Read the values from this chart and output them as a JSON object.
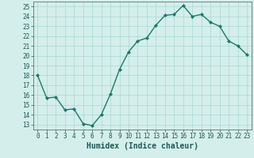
{
  "x": [
    0,
    1,
    2,
    3,
    4,
    5,
    6,
    7,
    8,
    9,
    10,
    11,
    12,
    13,
    14,
    15,
    16,
    17,
    18,
    19,
    20,
    21,
    22,
    23
  ],
  "y": [
    18,
    15.7,
    15.8,
    14.5,
    14.6,
    13.1,
    12.9,
    14.0,
    16.1,
    18.6,
    20.4,
    21.5,
    21.8,
    23.1,
    24.1,
    24.2,
    25.1,
    24.0,
    24.2,
    23.4,
    23.0,
    21.5,
    21.0,
    20.1
  ],
  "line_color": "#1a7a6a",
  "marker": "D",
  "marker_size": 2,
  "linewidth": 1.0,
  "xlabel": "Humidex (Indice chaleur)",
  "xlim": [
    -0.5,
    23.5
  ],
  "ylim": [
    12.5,
    25.5
  ],
  "yticks": [
    13,
    14,
    15,
    16,
    17,
    18,
    19,
    20,
    21,
    22,
    23,
    24,
    25
  ],
  "xticks": [
    0,
    1,
    2,
    3,
    4,
    5,
    6,
    7,
    8,
    9,
    10,
    11,
    12,
    13,
    14,
    15,
    16,
    17,
    18,
    19,
    20,
    21,
    22,
    23
  ],
  "bg_color": "#d4eeeb",
  "grid_color": "#a8d8d4",
  "xlabel_fontsize": 7,
  "tick_fontsize": 5.5
}
